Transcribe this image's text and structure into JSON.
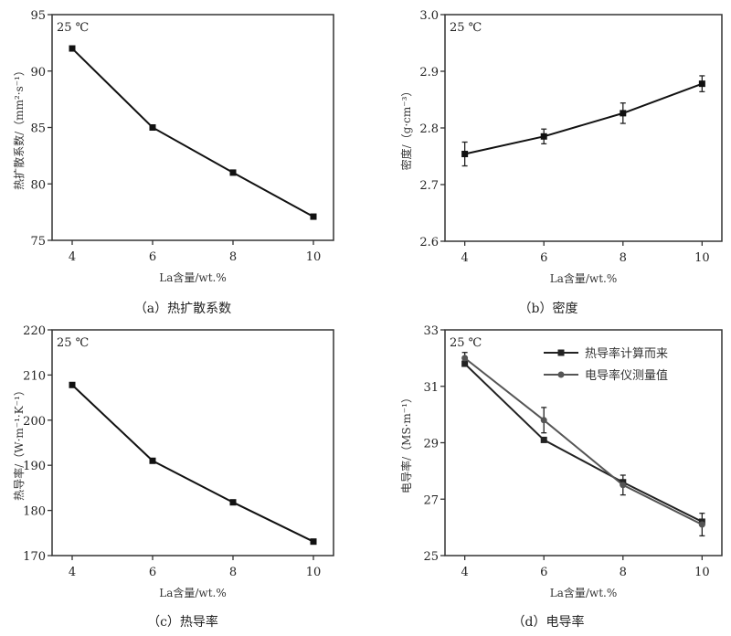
{
  "chart_data": [
    {
      "id": "a",
      "type": "line",
      "caption": "（a）热扩散系数",
      "annotation": "25 ℃",
      "xlabel": "La含量/wt.%",
      "ylabel": "热扩散系数/（mm²·s⁻¹）",
      "x": [
        4,
        6,
        8,
        10
      ],
      "xticks": [
        "4",
        "6",
        "8",
        "10"
      ],
      "xlim": [
        3.5,
        10.5
      ],
      "ylim": [
        75,
        95
      ],
      "yticks": [
        "75",
        "80",
        "85",
        "90",
        "95"
      ],
      "series": [
        {
          "values": [
            92.0,
            85.0,
            81.0,
            77.1
          ],
          "marker": "square",
          "color": "#111111"
        }
      ]
    },
    {
      "id": "b",
      "type": "line",
      "caption": "（b）密度",
      "annotation": "25 ℃",
      "xlabel": "La含量/wt.%",
      "ylabel": "密度/（g·cm⁻³）",
      "x": [
        4,
        6,
        8,
        10
      ],
      "xticks": [
        "4",
        "6",
        "8",
        "10"
      ],
      "xlim": [
        3.5,
        10.5
      ],
      "ylim": [
        2.6,
        3.0
      ],
      "yticks": [
        "2.6",
        "2.7",
        "2.8",
        "2.9",
        "3.0"
      ],
      "series": [
        {
          "values": [
            2.754,
            2.785,
            2.826,
            2.878
          ],
          "errors": [
            0.021,
            0.013,
            0.018,
            0.014
          ],
          "marker": "square",
          "color": "#111111"
        }
      ]
    },
    {
      "id": "c",
      "type": "line",
      "caption": "（c）热导率",
      "annotation": "25 ℃",
      "xlabel": "La含量/wt.%",
      "ylabel": "热导率/（W·m⁻¹·K⁻¹）",
      "x": [
        4,
        6,
        8,
        10
      ],
      "xticks": [
        "4",
        "6",
        "8",
        "10"
      ],
      "xlim": [
        3.5,
        10.5
      ],
      "ylim": [
        170,
        220
      ],
      "yticks": [
        "170",
        "180",
        "190",
        "200",
        "210",
        "220"
      ],
      "series": [
        {
          "values": [
            207.8,
            191.0,
            181.8,
            173.1
          ],
          "marker": "square",
          "color": "#111111"
        }
      ]
    },
    {
      "id": "d",
      "type": "line",
      "caption": "（d）电导率",
      "annotation": "25 ℃",
      "xlabel": "La含量/wt.%",
      "ylabel": "电导率/（MS·m⁻¹）",
      "x": [
        4,
        6,
        8,
        10
      ],
      "xticks": [
        "4",
        "6",
        "8",
        "10"
      ],
      "xlim": [
        3.5,
        10.5
      ],
      "ylim": [
        25,
        33
      ],
      "yticks": [
        "25",
        "27",
        "29",
        "31",
        "33"
      ],
      "legend": "top-right",
      "series": [
        {
          "name": "热导率计算而来",
          "values": [
            31.8,
            29.1,
            27.6,
            26.2
          ],
          "marker": "square",
          "color": "#222222"
        },
        {
          "name": "电导率仪测量值",
          "values": [
            32.0,
            29.8,
            27.5,
            26.1
          ],
          "errors": [
            0.2,
            0.45,
            0.35,
            0.4
          ],
          "marker": "circle",
          "color": "#555555"
        }
      ]
    }
  ]
}
